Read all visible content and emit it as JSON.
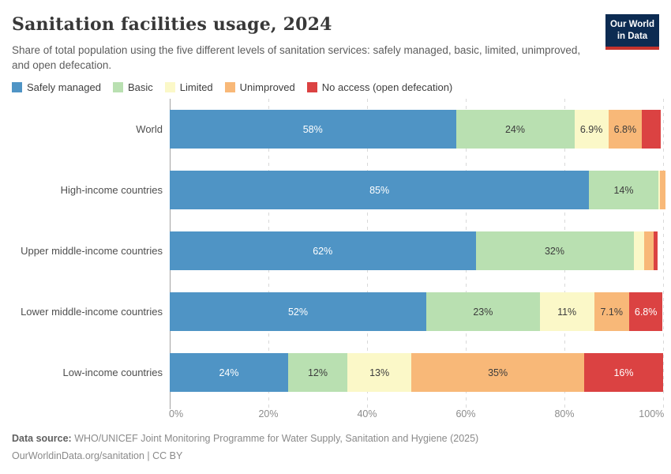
{
  "header": {
    "title": "Sanitation facilities usage, 2024",
    "subtitle": "Share of total population using the five different levels of sanitation services: safely managed, basic, limited, unimproved, and open defecation.",
    "logo": {
      "line1": "Our World",
      "line2": "in Data",
      "bg_color": "#0c2b52",
      "stripe_color": "#c5332d"
    }
  },
  "chart_data": {
    "type": "bar",
    "stacked": true,
    "orientation": "horizontal",
    "unit": "%",
    "legend_position": "top",
    "grid": true,
    "series": [
      {
        "name": "Safely managed",
        "color": "#4f94c5",
        "label_color": "#ffffff"
      },
      {
        "name": "Basic",
        "color": "#b9e0b1",
        "label_color": "#3c3c3c"
      },
      {
        "name": "Limited",
        "color": "#fbf8c8",
        "label_color": "#3c3c3c"
      },
      {
        "name": "Unimproved",
        "color": "#f8b878",
        "label_color": "#3c3c3c"
      },
      {
        "name": "No access (open defecation)",
        "color": "#db4242",
        "label_color": "#ffffff"
      }
    ],
    "categories": [
      "World",
      "High-income countries",
      "Upper middle-income countries",
      "Lower middle-income countries",
      "Low-income countries"
    ],
    "rows": [
      {
        "category": "World",
        "values": [
          58,
          24,
          6.9,
          6.8,
          3.8
        ],
        "labels": [
          "58%",
          "24%",
          "6.9%",
          "6.8%",
          null
        ]
      },
      {
        "category": "High-income countries",
        "values": [
          85,
          14,
          0.4,
          1.1,
          0
        ],
        "labels": [
          "85%",
          "14%",
          null,
          null,
          null
        ]
      },
      {
        "category": "Upper middle-income countries",
        "values": [
          62,
          32,
          2.2,
          1.9,
          0.8
        ],
        "labels": [
          "62%",
          "32%",
          null,
          null,
          null
        ]
      },
      {
        "category": "Lower middle-income countries",
        "values": [
          52,
          23,
          11,
          7.1,
          6.8
        ],
        "labels": [
          "52%",
          "23%",
          "11%",
          "7.1%",
          "6.8%"
        ]
      },
      {
        "category": "Low-income countries",
        "values": [
          24,
          12,
          13,
          35,
          16
        ],
        "labels": [
          "24%",
          "12%",
          "13%",
          "35%",
          "16%"
        ]
      }
    ],
    "x_axis": {
      "min": 0,
      "max": 100,
      "tick_labels": [
        "0%",
        "20%",
        "40%",
        "60%",
        "80%",
        "100%"
      ]
    }
  },
  "footer": {
    "source_label": "Data source:",
    "source_text": " WHO/UNICEF Joint Monitoring Programme for Water Supply, Sanitation and Hygiene (2025)",
    "attribution": "OurWorldinData.org/sanitation | CC BY"
  }
}
